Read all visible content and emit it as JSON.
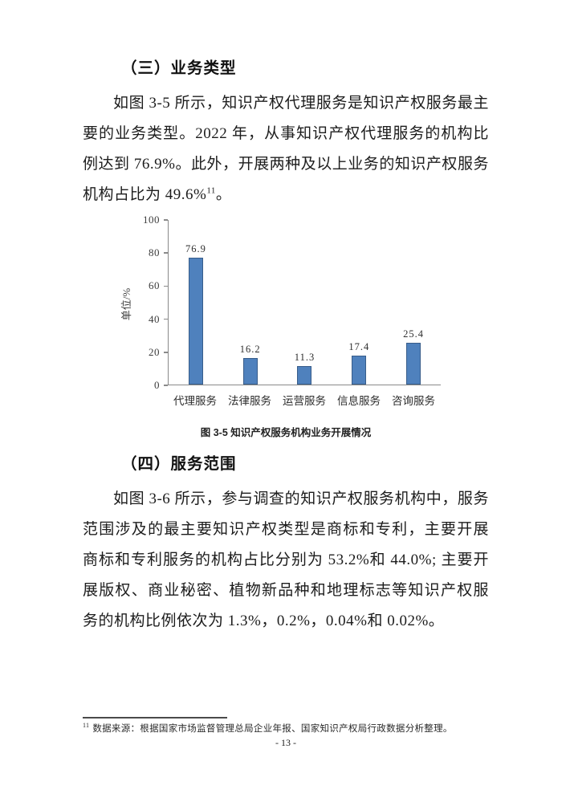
{
  "page": {
    "number_label": "- 13 -"
  },
  "sections": {
    "business_type": {
      "heading": "（三）业务类型",
      "paragraph_before_sup": "如图 3-5 所示，知识产权代理服务是知识产权服务最主要的业务类型。2022 年，从事知识产权代理服务的机构比例达到 76.9%。此外，开展两种及以上业务的知识产权服务机构占比为 49.6%",
      "paragraph_sup": "11",
      "paragraph_after_sup": "。"
    },
    "service_scope": {
      "heading": "（四）服务范围",
      "paragraph": "如图 3-6 所示，参与调查的知识产权服务机构中，服务范围涉及的最主要知识产权类型是商标和专利，主要开展商标和专利服务的机构占比分别为 53.2%和 44.0%; 主要开展版权、商业秘密、植物新品种和地理标志等知识产权服务的机构比例依次为 1.3%，0.2%，0.04%和 0.02%。"
    }
  },
  "figure": {
    "caption": "图 3-5 知识产权服务机构业务开展情况"
  },
  "chart_data": {
    "type": "bar",
    "title": "",
    "categories": [
      "代理服务",
      "法律服务",
      "运营服务",
      "信息服务",
      "咨询服务"
    ],
    "values": [
      76.9,
      16.2,
      11.3,
      17.4,
      25.4
    ],
    "value_labels": [
      "76.9",
      "16.2",
      "11.3",
      "17.4",
      "25.4"
    ],
    "xlabel": "",
    "ylabel": "单位/%",
    "ylim": [
      0,
      100
    ],
    "yticks": [
      0,
      20,
      40,
      60,
      80,
      100
    ],
    "grid": false,
    "legend": "none",
    "bar_color": "#4f81bd",
    "bar_border_color": "#385d8a",
    "axis_color": "#8a8a8a"
  },
  "footnote": {
    "marker": "11",
    "text": "数据来源：根据国家市场监督管理总局企业年报、国家知识产权局行政数据分析整理。"
  }
}
